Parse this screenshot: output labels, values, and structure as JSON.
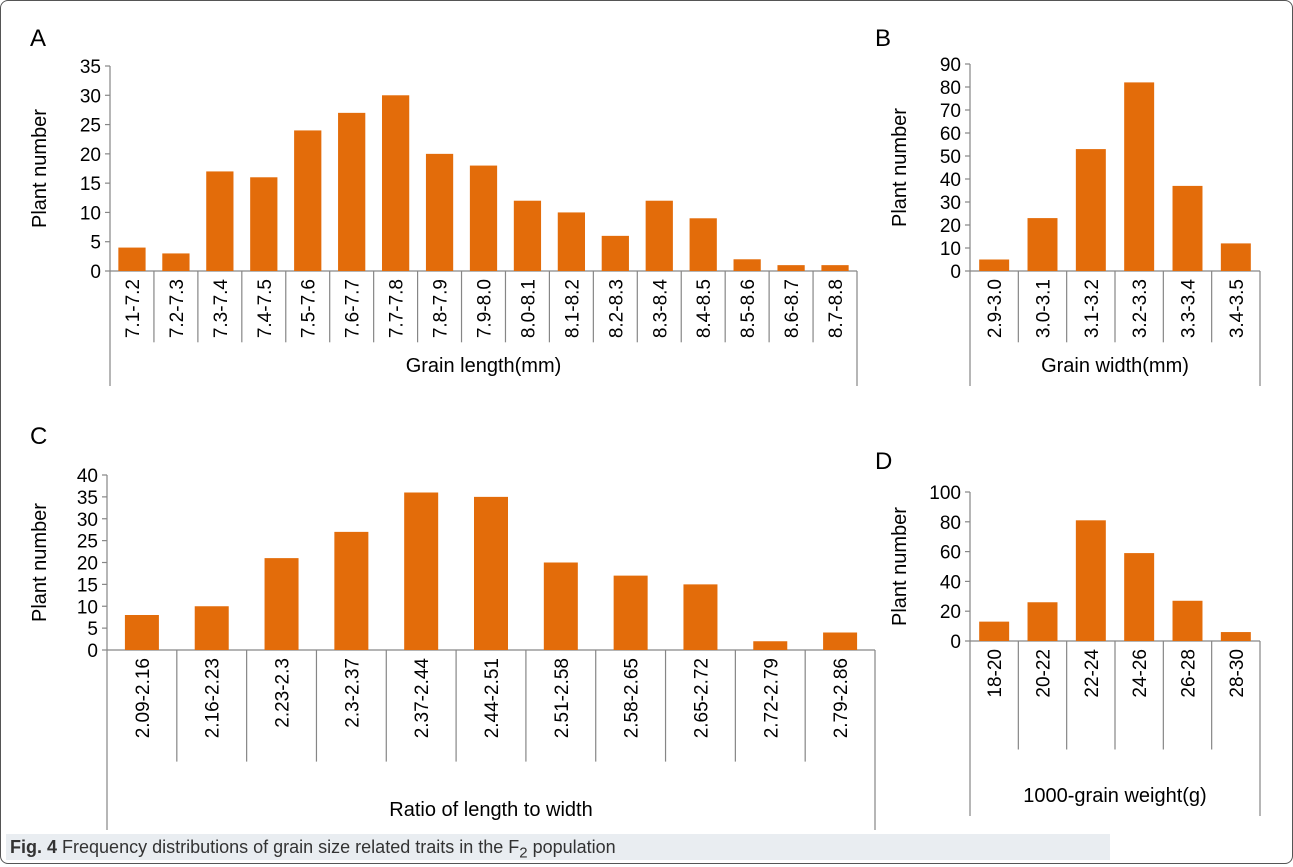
{
  "colors": {
    "bar": "#E36C0A",
    "axis": "#868686",
    "text": "#000000"
  },
  "caption": {
    "fig_label": "Fig. 4",
    "text_before_sub": "Frequency distributions of grain size related traits in the F",
    "subscript": "2",
    "text_after_sub": " population"
  },
  "chart_data": [
    {
      "panel": "A",
      "type": "bar",
      "xlabel": "Grain length(mm)",
      "ylabel": "Plant number",
      "ylim": [
        0,
        35
      ],
      "yticks": [
        0,
        5,
        10,
        15,
        20,
        25,
        30,
        35
      ],
      "categories": [
        "7.1-7.2",
        "7.2-7.3",
        "7.3-7.4",
        "7.4-7.5",
        "7.5-7.6",
        "7.6-7.7",
        "7.7-7.8",
        "7.8-7.9",
        "7.9-8.0",
        "8.0-8.1",
        "8.1-8.2",
        "8.2-8.3",
        "8.3-8.4",
        "8.4-8.5",
        "8.5-8.6",
        "8.6-8.7",
        "8.7-8.8"
      ],
      "values": [
        4,
        3,
        17,
        16,
        24,
        27,
        30,
        20,
        18,
        12,
        10,
        6,
        12,
        9,
        2,
        1,
        1
      ]
    },
    {
      "panel": "B",
      "type": "bar",
      "xlabel": "Grain width(mm)",
      "ylabel": "Plant number",
      "ylim": [
        0,
        90
      ],
      "yticks": [
        0,
        10,
        20,
        30,
        40,
        50,
        60,
        70,
        80,
        90
      ],
      "categories": [
        "2.9-3.0",
        "3.0-3.1",
        "3.1-3.2",
        "3.2-3.3",
        "3.3-3.4",
        "3.4-3.5"
      ],
      "values": [
        5,
        23,
        53,
        82,
        37,
        12
      ]
    },
    {
      "panel": "C",
      "type": "bar",
      "xlabel": "Ratio of length to width",
      "ylabel": "Plant number",
      "ylim": [
        0,
        40
      ],
      "yticks": [
        0,
        5,
        10,
        15,
        20,
        25,
        30,
        35,
        40
      ],
      "categories": [
        "2.09-2.16",
        "2.16-2.23",
        "2.23-2.3",
        "2.3-2.37",
        "2.37-2.44",
        "2.44-2.51",
        "2.51-2.58",
        "2.58-2.65",
        "2.65-2.72",
        "2.72-2.79",
        "2.79-2.86"
      ],
      "values": [
        8,
        10,
        21,
        27,
        36,
        35,
        20,
        17,
        15,
        2,
        4
      ]
    },
    {
      "panel": "D",
      "type": "bar",
      "xlabel": "1000-grain weight(g)",
      "ylabel": "Plant number",
      "ylim": [
        0,
        100
      ],
      "yticks": [
        0,
        20,
        40,
        60,
        80,
        100
      ],
      "categories": [
        "18-20",
        "20-22",
        "22-24",
        "24-26",
        "26-28",
        "28-30"
      ],
      "values": [
        13,
        26,
        81,
        59,
        27,
        6
      ]
    }
  ]
}
